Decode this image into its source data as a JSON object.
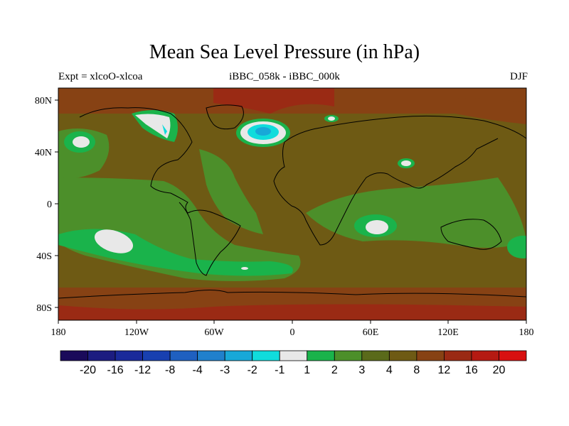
{
  "header": {
    "title": "Mean Sea Level Pressure (in hPa)",
    "left": "Expt = xlcoO-xlcoa",
    "center": "iBBC_058k - iBBC_000k",
    "right": "DJF"
  },
  "axes": {
    "lat_labels": [
      "80N",
      "40N",
      "0",
      "40S",
      "80S"
    ],
    "lon_labels": [
      "180",
      "120W",
      "60W",
      "0",
      "60E",
      "120E",
      "180"
    ]
  },
  "colorbar": {
    "labels": [
      "-20",
      "-16",
      "-12",
      "-8",
      "-4",
      "-3",
      "-2",
      "-1",
      "1",
      "2",
      "3",
      "4",
      "8",
      "12",
      "16",
      "20"
    ],
    "colors": [
      "#1a0a5a",
      "#1c1c80",
      "#1a2a9a",
      "#1840b0",
      "#1f60c0",
      "#2080cc",
      "#18a8d8",
      "#10dcdc",
      "#e8e8e8",
      "#1ab34b",
      "#4c8f2a",
      "#5a6a1a",
      "#6e5a14",
      "#874214",
      "#9a2a14",
      "#b51a12",
      "#d81010"
    ]
  },
  "legend_colors": {
    "land_base": "#6e5a14",
    "ocean_green": "#4c8f2a",
    "ocean_bright": "#1ab34b",
    "near_zero": "#e8e8e8",
    "high": "#874214"
  }
}
